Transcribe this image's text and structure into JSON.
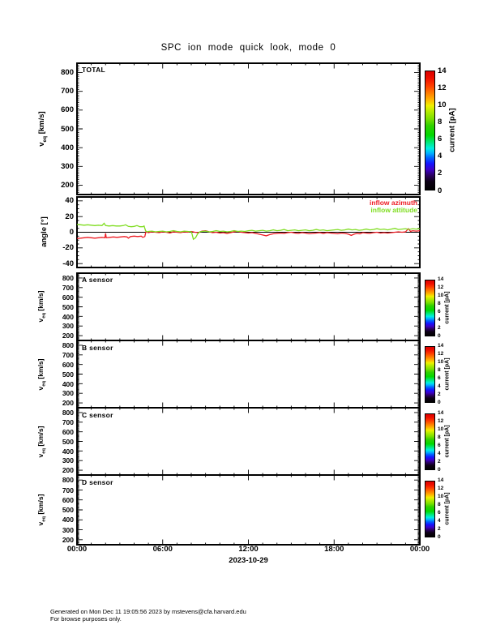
{
  "page": {
    "title": "SPC ion mode quick look, mode 0",
    "date_label": "2023-10-29",
    "footer_line1": "Generated on Mon Dec 11 19:05:56 2023 by mstevens@cfa.harvard.edu",
    "footer_line2": "For browse purposes only."
  },
  "colors": {
    "frame": "#000000",
    "inflow_azimuth": "#ee1c24",
    "inflow_attitude": "#7fdd20"
  },
  "xaxis": {
    "lim": [
      0,
      24
    ],
    "major_ticks": [
      0,
      6,
      12,
      18,
      24
    ],
    "labels": [
      "00:00",
      "06:00",
      "12:00",
      "18:00",
      "00:00"
    ],
    "minor_step": 1
  },
  "colorbar": {
    "label": "current [pA]",
    "lim": [
      0,
      14
    ],
    "ticks": [
      0,
      2,
      4,
      6,
      8,
      10,
      12,
      14
    ],
    "gradient": [
      "#000000 0%",
      "#0d0016 7%",
      "#2a0060 12%",
      "#3d00c8 17%",
      "#1414ff 22%",
      "#0064ff 27%",
      "#00b4ff 31%",
      "#00f0e0 35%",
      "#00e87a 40%",
      "#00d800 46%",
      "#30d000 54%",
      "#7ce000 60%",
      "#b4ec00 66%",
      "#f0f000 71%",
      "#ffb400 76%",
      "#ff7800 82%",
      "#ff3c00 88%",
      "#f01000 94%",
      "#dc0000 100%"
    ]
  },
  "chart_data": [
    {
      "id": "total",
      "type": "line",
      "label": "TOTAL",
      "ylabel": {
        "prefix": "v",
        "sub": "eq",
        "rest": " [km/s]"
      },
      "ylim": [
        150,
        850
      ],
      "yticks": [
        200,
        300,
        400,
        500,
        600,
        700,
        800
      ],
      "yminor_step": 10,
      "has_colorbar": true,
      "series": []
    },
    {
      "id": "angle",
      "type": "line",
      "label": "",
      "ylabel": {
        "prefix": "angle [°]",
        "sub": "",
        "rest": ""
      },
      "ylim": [
        -45,
        45
      ],
      "yticks": [
        -40,
        -20,
        0,
        20,
        40
      ],
      "yminor_step": 5,
      "zero_line": true,
      "has_colorbar": false,
      "legend": [
        {
          "name": "inflow azimuth",
          "color": "#ee1c24"
        },
        {
          "name": "inflow attitude",
          "color": "#7fdd20"
        }
      ],
      "series": [
        {
          "name": "inflow azimuth",
          "color": "#ee1c24",
          "points": [
            [
              0,
              -8
            ],
            [
              0.25,
              -7.5
            ],
            [
              0.5,
              -7
            ],
            [
              0.75,
              -6.5
            ],
            [
              1,
              -7
            ],
            [
              1.25,
              -7.5
            ],
            [
              1.5,
              -7
            ],
            [
              1.75,
              -6.5
            ],
            [
              1.95,
              -7
            ],
            [
              2,
              -1.5
            ],
            [
              2.05,
              -7
            ],
            [
              2.3,
              -6.5
            ],
            [
              2.55,
              -6
            ],
            [
              2.8,
              -6.5
            ],
            [
              3.05,
              -6
            ],
            [
              3.3,
              -5.5
            ],
            [
              3.5,
              -6
            ],
            [
              3.6,
              -7.5
            ],
            [
              3.75,
              -5.5
            ],
            [
              4,
              -5
            ],
            [
              4.25,
              -5.5
            ],
            [
              4.5,
              -5
            ],
            [
              4.6,
              -6.5
            ],
            [
              4.75,
              -5.5
            ],
            [
              4.82,
              0.5
            ],
            [
              5,
              -0.5
            ],
            [
              5.25,
              0.5
            ],
            [
              5.5,
              0
            ],
            [
              5.75,
              -0.5
            ],
            [
              6,
              0.5
            ],
            [
              6.25,
              0
            ],
            [
              6.5,
              -1
            ],
            [
              6.75,
              0.5
            ],
            [
              7,
              0
            ],
            [
              7.25,
              -0.5
            ],
            [
              7.5,
              0.5
            ],
            [
              7.75,
              0
            ],
            [
              8,
              1
            ],
            [
              8.25,
              0
            ],
            [
              8.5,
              -0.5
            ],
            [
              8.75,
              1.5
            ],
            [
              9,
              2
            ],
            [
              9.25,
              0.5
            ],
            [
              9.5,
              -0.5
            ],
            [
              9.75,
              0
            ],
            [
              10,
              -1
            ],
            [
              10.25,
              -0.5
            ],
            [
              10.5,
              -1.5
            ],
            [
              10.75,
              -0.5
            ],
            [
              11,
              0.5
            ],
            [
              11.25,
              1
            ],
            [
              11.5,
              0
            ],
            [
              11.75,
              -0.5
            ],
            [
              12,
              -1
            ],
            [
              12.25,
              -0.5
            ],
            [
              12.5,
              -1.5
            ],
            [
              12.75,
              -2.5
            ],
            [
              13,
              -3.5
            ],
            [
              13.25,
              -4.5
            ],
            [
              13.5,
              -3
            ],
            [
              13.75,
              -2
            ],
            [
              14,
              -1.5
            ],
            [
              14.25,
              -1
            ],
            [
              14.5,
              -1.5
            ],
            [
              14.75,
              -0.5
            ],
            [
              15,
              0
            ],
            [
              15.25,
              -1
            ],
            [
              15.5,
              -1.5
            ],
            [
              15.75,
              -0.5
            ],
            [
              16,
              -1
            ],
            [
              16.25,
              -2
            ],
            [
              16.5,
              -1.5
            ],
            [
              16.75,
              -1
            ],
            [
              17,
              -0.5
            ],
            [
              17.25,
              -1.5
            ],
            [
              17.5,
              -0.5
            ],
            [
              17.75,
              -1
            ],
            [
              18,
              -1.5
            ],
            [
              18.25,
              -2
            ],
            [
              18.5,
              -1
            ],
            [
              18.75,
              -1.5
            ],
            [
              19,
              -2.5
            ],
            [
              19.2,
              -4
            ],
            [
              19.4,
              -2.5
            ],
            [
              19.6,
              -1.5
            ],
            [
              19.8,
              -2
            ],
            [
              20,
              -0.5
            ],
            [
              20.25,
              -1
            ],
            [
              20.5,
              -1.5
            ],
            [
              20.75,
              -0.5
            ],
            [
              21,
              0
            ],
            [
              21.25,
              -1
            ],
            [
              21.5,
              -0.5
            ],
            [
              21.75,
              -1
            ],
            [
              22,
              -0.5
            ],
            [
              22.25,
              0
            ],
            [
              22.5,
              0.5
            ],
            [
              22.75,
              0
            ],
            [
              23,
              0.5
            ],
            [
              23.2,
              4.5
            ],
            [
              23.35,
              1
            ],
            [
              23.5,
              2
            ],
            [
              23.75,
              1.5
            ],
            [
              24,
              2
            ]
          ]
        },
        {
          "name": "inflow attitude",
          "color": "#7fdd20",
          "points": [
            [
              0,
              10
            ],
            [
              0.25,
              9.5
            ],
            [
              0.5,
              9
            ],
            [
              0.75,
              9.5
            ],
            [
              1,
              9
            ],
            [
              1.25,
              8.5
            ],
            [
              1.5,
              9
            ],
            [
              1.75,
              8.5
            ],
            [
              1.9,
              11.5
            ],
            [
              2,
              8.5
            ],
            [
              2.25,
              8
            ],
            [
              2.5,
              8.5
            ],
            [
              2.75,
              8
            ],
            [
              3,
              8
            ],
            [
              3.25,
              8.5
            ],
            [
              3.4,
              9.5
            ],
            [
              3.6,
              7.5
            ],
            [
              3.8,
              7
            ],
            [
              4,
              7.5
            ],
            [
              4.2,
              8.5
            ],
            [
              4.4,
              7
            ],
            [
              4.6,
              7
            ],
            [
              4.7,
              8
            ],
            [
              4.8,
              2
            ],
            [
              4.9,
              0.5
            ],
            [
              5,
              1
            ],
            [
              5.25,
              1.5
            ],
            [
              5.5,
              0.5
            ],
            [
              5.75,
              1
            ],
            [
              6,
              1.5
            ],
            [
              6.25,
              0.5
            ],
            [
              6.5,
              1
            ],
            [
              6.75,
              2
            ],
            [
              7,
              1
            ],
            [
              7.25,
              0.5
            ],
            [
              7.5,
              1.5
            ],
            [
              7.75,
              1
            ],
            [
              8,
              0.5
            ],
            [
              8.05,
              -2
            ],
            [
              8.15,
              -9
            ],
            [
              8.3,
              -7
            ],
            [
              8.45,
              -2
            ],
            [
              8.6,
              0.5
            ],
            [
              8.75,
              1
            ],
            [
              9,
              1.5
            ],
            [
              9.25,
              0.5
            ],
            [
              9.5,
              1
            ],
            [
              9.75,
              2
            ],
            [
              10,
              1
            ],
            [
              10.25,
              1.5
            ],
            [
              10.5,
              0.5
            ],
            [
              10.75,
              1
            ],
            [
              11,
              2
            ],
            [
              11.25,
              1
            ],
            [
              11.5,
              1.5
            ],
            [
              11.75,
              1
            ],
            [
              12,
              2
            ],
            [
              12.25,
              2.5
            ],
            [
              12.5,
              1.5
            ],
            [
              12.75,
              2
            ],
            [
              13,
              2.5
            ],
            [
              13.25,
              1.5
            ],
            [
              13.5,
              2
            ],
            [
              13.75,
              3
            ],
            [
              14,
              2
            ],
            [
              14.25,
              2.5
            ],
            [
              14.5,
              3.5
            ],
            [
              14.75,
              2
            ],
            [
              15,
              2.5
            ],
            [
              15.25,
              3
            ],
            [
              15.5,
              2
            ],
            [
              15.75,
              2.5
            ],
            [
              16,
              3
            ],
            [
              16.25,
              2
            ],
            [
              16.5,
              2.5
            ],
            [
              16.75,
              3.5
            ],
            [
              17,
              2.5
            ],
            [
              17.25,
              3
            ],
            [
              17.5,
              2
            ],
            [
              17.75,
              2.5
            ],
            [
              18,
              3
            ],
            [
              18.25,
              3.5
            ],
            [
              18.5,
              2.5
            ],
            [
              18.75,
              3
            ],
            [
              19,
              4
            ],
            [
              19.25,
              3
            ],
            [
              19.5,
              3.5
            ],
            [
              19.75,
              2.5
            ],
            [
              20,
              3
            ],
            [
              20.25,
              4
            ],
            [
              20.5,
              3
            ],
            [
              20.75,
              3.5
            ],
            [
              21,
              4.5
            ],
            [
              21.25,
              3.5
            ],
            [
              21.5,
              4
            ],
            [
              21.75,
              3
            ],
            [
              22,
              4
            ],
            [
              22.25,
              5
            ],
            [
              22.5,
              3.5
            ],
            [
              22.75,
              4
            ],
            [
              23,
              4.5
            ],
            [
              23.25,
              3.5
            ],
            [
              23.5,
              4.5
            ],
            [
              23.75,
              4
            ],
            [
              24,
              4.5
            ]
          ]
        }
      ]
    },
    {
      "id": "sensor_a",
      "type": "line",
      "label": "A sensor",
      "ylabel": {
        "prefix": "v",
        "sub": "eq",
        "rest": " [km/s]"
      },
      "ylim": [
        150,
        850
      ],
      "yticks": [
        200,
        300,
        400,
        500,
        600,
        700,
        800
      ],
      "yminor_step": 10,
      "has_colorbar": true,
      "series": []
    },
    {
      "id": "sensor_b",
      "type": "line",
      "label": "B sensor",
      "ylabel": {
        "prefix": "v",
        "sub": "eq",
        "rest": " [km/s]"
      },
      "ylim": [
        150,
        850
      ],
      "yticks": [
        200,
        300,
        400,
        500,
        600,
        700,
        800
      ],
      "yminor_step": 10,
      "has_colorbar": true,
      "series": []
    },
    {
      "id": "sensor_c",
      "type": "line",
      "label": "C sensor",
      "ylabel": {
        "prefix": "v",
        "sub": "eq",
        "rest": " [km/s]"
      },
      "ylim": [
        150,
        850
      ],
      "yticks": [
        200,
        300,
        400,
        500,
        600,
        700,
        800
      ],
      "yminor_step": 10,
      "has_colorbar": true,
      "series": []
    },
    {
      "id": "sensor_d",
      "type": "line",
      "label": "D sensor",
      "ylabel": {
        "prefix": "v",
        "sub": "eq",
        "rest": " [km/s]"
      },
      "ylim": [
        150,
        850
      ],
      "yticks": [
        200,
        300,
        400,
        500,
        600,
        700,
        800
      ],
      "yminor_step": 10,
      "has_colorbar": true,
      "series": []
    }
  ]
}
